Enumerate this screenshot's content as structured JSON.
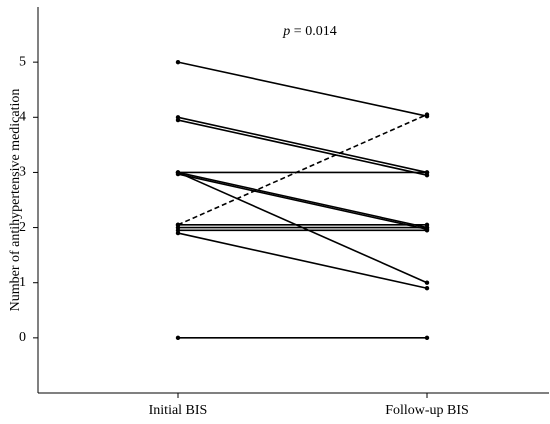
{
  "chart_data": {
    "type": "paired-line",
    "y_label": "Number of antihypertensive medication",
    "annotation": {
      "symbol": "p",
      "text": "= 0.014"
    },
    "categories": [
      "Initial BIS",
      "Follow-up BIS"
    ],
    "ylim": [
      -1,
      6
    ],
    "yticks": [
      0,
      1,
      2,
      3,
      4,
      5
    ],
    "color": "#000000",
    "series": [
      {
        "values": [
          5,
          4.02
        ]
      },
      {
        "values": [
          4,
          3
        ]
      },
      {
        "values": [
          3.95,
          2.95
        ]
      },
      {
        "values": [
          3,
          3
        ]
      },
      {
        "values": [
          3,
          2
        ]
      },
      {
        "values": [
          2.97,
          1.97
        ]
      },
      {
        "values": [
          3,
          1
        ]
      },
      {
        "values": [
          2.05,
          4.05
        ],
        "dashed": true
      },
      {
        "values": [
          2.05,
          2.05
        ]
      },
      {
        "values": [
          2,
          2
        ]
      },
      {
        "values": [
          1.95,
          1.95
        ]
      },
      {
        "values": [
          1.9,
          0.9
        ]
      },
      {
        "values": [
          0,
          0
        ]
      }
    ]
  }
}
